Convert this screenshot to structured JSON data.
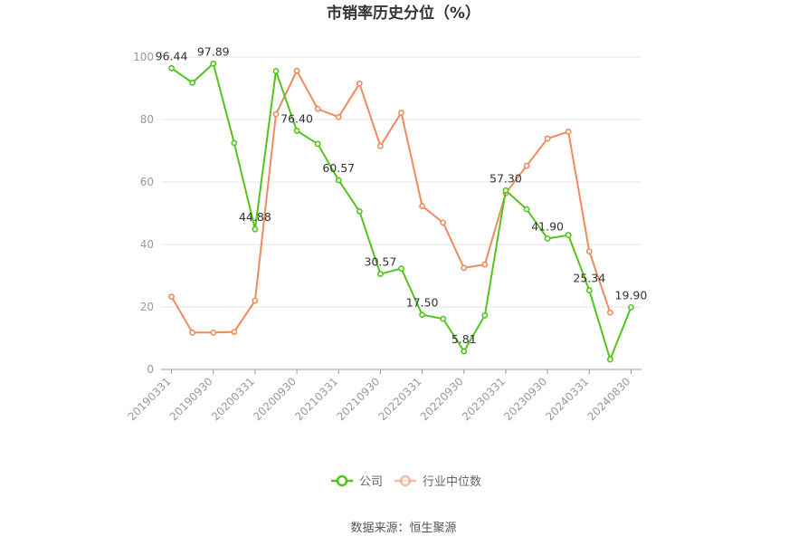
{
  "chart_data": {
    "type": "line",
    "title": "市销率历史分位（%）",
    "xlabel": "",
    "ylabel": "",
    "ylim": [
      0,
      100
    ],
    "yticks": [
      0,
      20,
      40,
      60,
      80,
      100
    ],
    "x": [
      "20190331",
      "20190630",
      "20190930",
      "20191231",
      "20200331",
      "20200630",
      "20200930",
      "20201231",
      "20210331",
      "20210630",
      "20210930",
      "20211231",
      "20220331",
      "20220630",
      "20220930",
      "20221231",
      "20230331",
      "20230630",
      "20230930",
      "20231231",
      "20240331",
      "20240630",
      "20240830"
    ],
    "xtick_labels": [
      "20190331",
      "20190930",
      "20200331",
      "20200930",
      "20210331",
      "20210930",
      "20220331",
      "20220930",
      "20230331",
      "20230930",
      "20240331",
      "20240830"
    ],
    "series": [
      {
        "name": "公司",
        "color": "#52c41a",
        "values": [
          96.44,
          91.8,
          97.89,
          72.5,
          44.88,
          95.5,
          76.4,
          72.2,
          60.57,
          50.6,
          30.57,
          32.3,
          17.5,
          16.2,
          5.81,
          17.3,
          57.3,
          51.3,
          41.9,
          43.0,
          25.34,
          3.2,
          19.9
        ],
        "labels": {
          "0": "96.44",
          "2": "97.89",
          "4": "44.88",
          "6": "76.40",
          "8": "60.57",
          "10": "30.57",
          "12": "17.50",
          "14": "5.81",
          "16": "57.30",
          "18": "41.90",
          "20": "25.34",
          "22": "19.90"
        }
      },
      {
        "name": "行业中位数",
        "color": "#f08a5d",
        "values": [
          23.3,
          11.8,
          11.8,
          12.0,
          22.0,
          81.7,
          95.6,
          83.4,
          80.8,
          91.5,
          71.5,
          82.2,
          52.3,
          47.0,
          32.5,
          33.6,
          56.4,
          65.2,
          73.9,
          76.1,
          37.8,
          18.2,
          null
        ]
      }
    ],
    "legend_position": "bottom"
  },
  "source": "数据来源：恒生聚源"
}
